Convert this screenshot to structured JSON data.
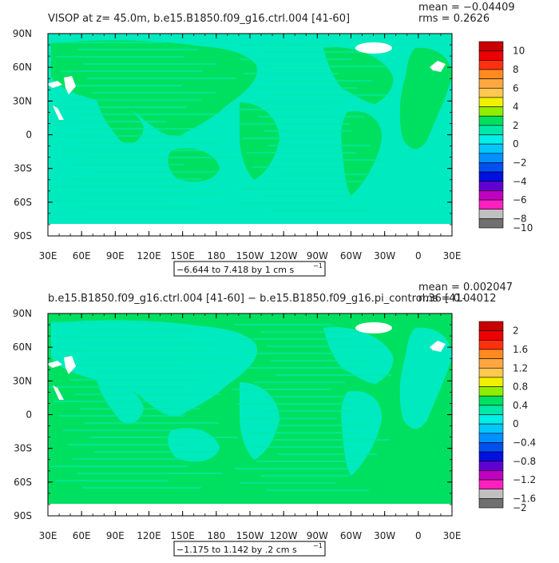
{
  "chart_data": [
    {
      "type": "heatmap",
      "title": "VISOP at z=  45.0m, b.e15.B1850.f09_g16.ctrl.004 [41-60]",
      "stats": {
        "mean": "mean = −0.04409",
        "rms": "rms = 0.2626"
      },
      "range_label": "−6.644 to 7.418 by 1 cm s",
      "range_unit_sup": "−1",
      "x_ticks": [
        "30E",
        "60E",
        "90E",
        "120E",
        "150E",
        "180",
        "150W",
        "120W",
        "90W",
        "60W",
        "30W",
        "0",
        "30E"
      ],
      "y_ticks": [
        "90N",
        "60N",
        "30N",
        "0",
        "30S",
        "60S",
        "90S"
      ],
      "colorbar_labels": [
        "10",
        "8",
        "6",
        "4",
        "2",
        "0",
        "−2",
        "−4",
        "−6",
        "−8",
        "−10"
      ],
      "colorbar_colors": [
        "#c80000",
        "#ee0000",
        "#ff3010",
        "#ff8a20",
        "#ffa840",
        "#ffc850",
        "#f0f000",
        "#90ee00",
        "#00e060",
        "#00e8a8",
        "#00f0e8",
        "#00c8ff",
        "#0090ff",
        "#0050f0",
        "#0010e0",
        "#6000d0",
        "#c000c0",
        "#ff20c0",
        "#c0c0c0",
        "#707070"
      ],
      "field_colors": {
        "background": "#00eac0",
        "land": "#00e060",
        "accent": "#00e8a8"
      }
    },
    {
      "type": "heatmap",
      "title": "b.e15.B1850.f09_g16.ctrl.004 [41-60] − b.e15.B1850.f09_g16.pi_control.36 [41-",
      "stats": {
        "mean": "mean = 0.002047",
        "rms": "rms = 0.04012"
      },
      "range_label": "−1.175 to 1.142 by .2 cm s",
      "range_unit_sup": "−1",
      "x_ticks": [
        "30E",
        "60E",
        "90E",
        "120E",
        "150E",
        "180",
        "150W",
        "120W",
        "90W",
        "60W",
        "30W",
        "0",
        "30E"
      ],
      "y_ticks": [
        "90N",
        "60N",
        "30N",
        "0",
        "30S",
        "60S",
        "90S"
      ],
      "colorbar_labels": [
        "2",
        "1.6",
        "1.2",
        "0.8",
        "0.4",
        "0",
        "−0.4",
        "−0.8",
        "−1.2",
        "−1.6",
        "−2"
      ],
      "colorbar_colors": [
        "#c80000",
        "#ee0000",
        "#ff3010",
        "#ff8a20",
        "#ffa840",
        "#ffc850",
        "#f0f000",
        "#90ee00",
        "#00e060",
        "#00e8a8",
        "#00f0e8",
        "#00c8ff",
        "#0090ff",
        "#0050f0",
        "#0010e0",
        "#6000d0",
        "#c000c0",
        "#ff20c0",
        "#c0c0c0",
        "#707070"
      ],
      "field_colors": {
        "background": "#00e060",
        "land": "#00eac0",
        "accent": "#00e8a8"
      }
    }
  ]
}
